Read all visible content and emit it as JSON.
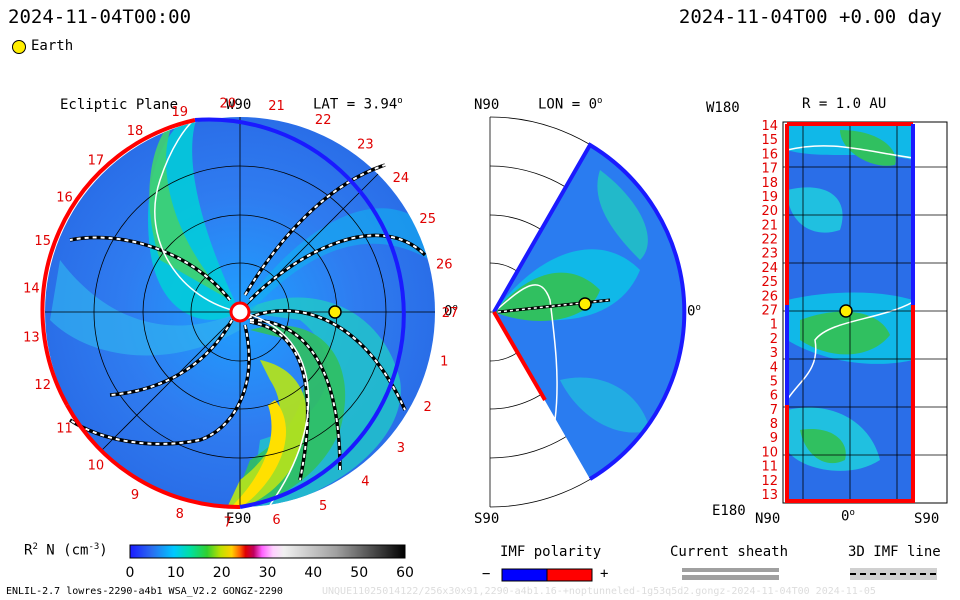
{
  "header": {
    "date_left": "2024-11-04T00:00",
    "date_right": "2024-11-04T00 +0.00 day",
    "legend_earth": "Earth"
  },
  "panel_ecliptic": {
    "title": "Ecliptic Plane",
    "lat_label": "LAT = 3.94",
    "lat_sup": "o",
    "top_label": "W90",
    "bottom_label": "E90",
    "right_label": "0",
    "right_sup": "o",
    "rotation_numbers": [
      "1",
      "2",
      "3",
      "4",
      "5",
      "6",
      "7",
      "8",
      "9",
      "10",
      "11",
      "12",
      "13",
      "14",
      "15",
      "16",
      "17",
      "18",
      "19",
      "20",
      "21",
      "22",
      "23",
      "24",
      "25",
      "26",
      "27"
    ]
  },
  "panel_meridional": {
    "top_left": "N90",
    "lon_label": "LON = 0",
    "lon_sup": "o",
    "bottom_left": "S90",
    "right_label": "0",
    "right_sup": "o"
  },
  "panel_r": {
    "title": "R = 1.0 AU",
    "top_left": "W180",
    "bottom_left": "E180",
    "x_ticks": [
      "N90",
      "0",
      "S90"
    ],
    "x_tick_sup": [
      "",
      "o",
      ""
    ],
    "y_numbers": [
      "14",
      "15",
      "16",
      "17",
      "18",
      "19",
      "20",
      "21",
      "22",
      "23",
      "24",
      "25",
      "26",
      "27",
      "1",
      "2",
      "3",
      "4",
      "5",
      "6",
      "7",
      "8",
      "9",
      "10",
      "11",
      "12",
      "13"
    ]
  },
  "colorbar": {
    "label_main": "R",
    "label_sup": "2",
    "label_rest": " N (cm",
    "label_exp": "-3",
    "label_close": ")",
    "ticks": [
      "0",
      "10",
      "20",
      "30",
      "40",
      "50",
      "60"
    ],
    "range": [
      0,
      60
    ]
  },
  "imf_polarity": {
    "title": "IMF polarity",
    "minus": "−",
    "plus": "+"
  },
  "current_sheath": {
    "title": "Current sheath"
  },
  "imf_line": {
    "title": "3D IMF line"
  },
  "footer": {
    "left": "ENLIL-2.7 lowres-2290-a4b1 WSA_V2.2 GONGZ-2290",
    "right": "UNQUE11025014122/256x30x91,2290-a4b1.16-+noptunneled-1g53q5d2.gongz-2024-11-04T00   2024-11-05"
  },
  "colors": {
    "polarity_negative": "#0000ff",
    "polarity_positive": "#ff0000",
    "earth": "#ffee00"
  }
}
